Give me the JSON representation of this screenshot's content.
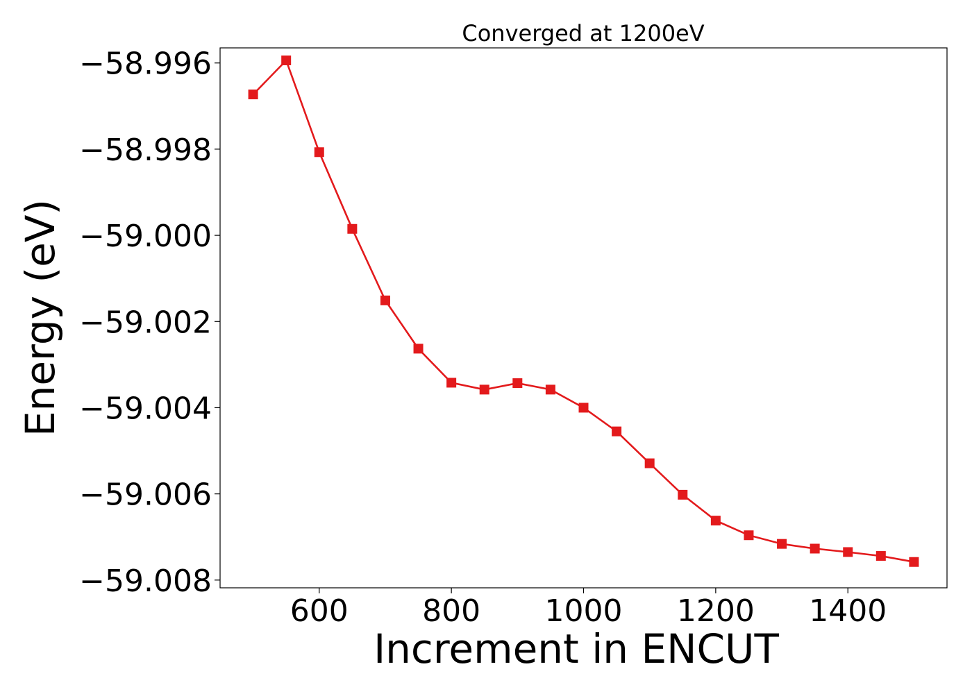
{
  "chart_data": {
    "type": "line",
    "title": "Converged at 1200eV",
    "xlabel": "Increment in ENCUT",
    "ylabel": "Energy (eV)",
    "xlim": [
      450,
      1550
    ],
    "ylim": [
      -59.00818,
      -58.99565
    ],
    "x_ticks": [
      600,
      800,
      1000,
      1200,
      1400
    ],
    "x_tick_labels": [
      "600",
      "800",
      "1000",
      "1200",
      "1400"
    ],
    "y_ticks": [
      -58.996,
      -58.998,
      -59.0,
      -59.002,
      -59.004,
      -59.006,
      -59.008
    ],
    "y_tick_labels": [
      "−58.996",
      "−58.998",
      "−59.000",
      "−59.002",
      "−59.004",
      "−59.006",
      "−59.008"
    ],
    "grid": false,
    "legend": "none",
    "series": [
      {
        "color": "#e31a1c",
        "marker": "square",
        "x": [
          500,
          550,
          600,
          650,
          700,
          750,
          800,
          850,
          900,
          950,
          1000,
          1050,
          1100,
          1150,
          1200,
          1250,
          1300,
          1350,
          1400,
          1450,
          1500
        ],
        "y": [
          -58.99673,
          -58.99594,
          -58.99807,
          -58.99985,
          -59.00151,
          -59.00263,
          -59.00342,
          -59.00358,
          -59.00343,
          -59.00358,
          -59.004,
          -59.00455,
          -59.00529,
          -59.00602,
          -59.00662,
          -59.00696,
          -59.00716,
          -59.00727,
          -59.00735,
          -59.00744,
          -59.00758
        ]
      }
    ]
  }
}
